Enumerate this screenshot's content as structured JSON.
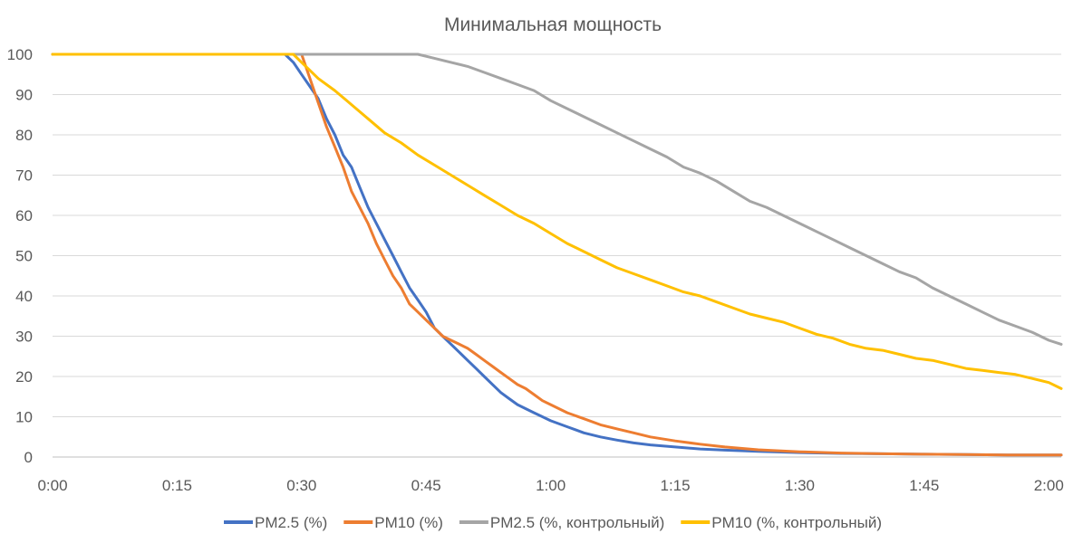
{
  "chart_data": {
    "type": "line",
    "title": "Минимальная мощность",
    "xlabel": "",
    "ylabel": "",
    "x_ticks": [
      "0:00",
      "0:15",
      "0:30",
      "0:45",
      "1:00",
      "1:15",
      "1:30",
      "1:45",
      "2:00"
    ],
    "x_tick_minutes": [
      0,
      15,
      30,
      45,
      60,
      75,
      90,
      105,
      120
    ],
    "xlim": [
      0,
      121.5
    ],
    "ylim": [
      0,
      100
    ],
    "y_ticks": [
      0,
      10,
      20,
      30,
      40,
      50,
      60,
      70,
      80,
      90,
      100
    ],
    "grid": true,
    "legend_position": "bottom",
    "series": [
      {
        "name": "PM2.5 (%)",
        "color": "#4472c4",
        "x": [
          0,
          28,
          29,
          30,
          31,
          32,
          33,
          34,
          35,
          36,
          37,
          38,
          39,
          40,
          41,
          42,
          43,
          44,
          45,
          46,
          47,
          48,
          49,
          50,
          51,
          52,
          53,
          54,
          55,
          56,
          57,
          58,
          59,
          60,
          62,
          64,
          66,
          68,
          70,
          72,
          75,
          78,
          81,
          85,
          90,
          95,
          100,
          105,
          110,
          115,
          121.5
        ],
        "y": [
          100,
          100,
          98,
          95,
          92,
          89,
          84,
          80,
          75,
          72,
          67,
          62,
          58,
          54,
          50,
          46,
          42,
          39,
          36,
          32,
          30,
          28,
          26,
          24,
          22,
          20,
          18,
          16,
          14.5,
          13,
          12,
          11,
          10,
          9,
          7.5,
          6,
          5,
          4.2,
          3.5,
          3,
          2.5,
          2,
          1.7,
          1.4,
          1.1,
          0.9,
          0.8,
          0.7,
          0.6,
          0.5,
          0.5
        ]
      },
      {
        "name": "PM10 (%)",
        "color": "#ed7d31",
        "x": [
          0,
          30,
          31,
          32,
          33,
          34,
          35,
          36,
          37,
          38,
          39,
          40,
          41,
          42,
          43,
          44,
          45,
          46,
          47,
          48,
          49,
          50,
          51,
          52,
          53,
          54,
          55,
          56,
          57,
          58,
          59,
          60,
          62,
          64,
          66,
          68,
          70,
          72,
          75,
          78,
          81,
          85,
          90,
          95,
          100,
          105,
          110,
          115,
          121.5
        ],
        "y": [
          100,
          100,
          94,
          88,
          82,
          77,
          72,
          66,
          62,
          58,
          53,
          49,
          45,
          42,
          38,
          36,
          34,
          32,
          30,
          29,
          28,
          27,
          25.5,
          24,
          22.5,
          21,
          19.5,
          18,
          17,
          15.5,
          14,
          13,
          11,
          9.5,
          8,
          7,
          6,
          5,
          4,
          3.2,
          2.5,
          1.8,
          1.3,
          1,
          0.8,
          0.7,
          0.6,
          0.5,
          0.5
        ]
      },
      {
        "name": "PM2.5 (%, контрольный)",
        "color": "#a5a5a5",
        "x": [
          0,
          44,
          46,
          48,
          50,
          52,
          54,
          56,
          58,
          60,
          62,
          64,
          66,
          68,
          70,
          72,
          74,
          76,
          78,
          80,
          82,
          84,
          86,
          88,
          90,
          92,
          94,
          96,
          98,
          100,
          102,
          104,
          106,
          108,
          110,
          112,
          114,
          116,
          118,
          120,
          121.5
        ],
        "y": [
          100,
          100,
          99,
          98,
          97,
          95.5,
          94,
          92.5,
          91,
          88.5,
          86.5,
          84.5,
          82.5,
          80.5,
          78.5,
          76.5,
          74.5,
          72,
          70.5,
          68.5,
          66,
          63.5,
          62,
          60,
          58,
          56,
          54,
          52,
          50,
          48,
          46,
          44.5,
          42,
          40,
          38,
          36,
          34,
          32.5,
          31,
          29,
          28
        ]
      },
      {
        "name": "PM10 (%, контрольный)",
        "color": "#ffc000",
        "x": [
          0,
          29,
          30,
          31,
          32,
          34,
          36,
          38,
          40,
          42,
          44,
          46,
          48,
          50,
          52,
          54,
          56,
          58,
          60,
          62,
          64,
          66,
          68,
          70,
          72,
          74,
          76,
          78,
          80,
          82,
          84,
          86,
          88,
          90,
          92,
          94,
          96,
          98,
          100,
          102,
          104,
          106,
          108,
          110,
          112,
          114,
          116,
          118,
          120,
          121.5
        ],
        "y": [
          100,
          100,
          98,
          96,
          94,
          91,
          87.5,
          84,
          80.5,
          78,
          75,
          72.5,
          70,
          67.5,
          65,
          62.5,
          60,
          58,
          55.5,
          53,
          51,
          49,
          47,
          45.5,
          44,
          42.5,
          41,
          40,
          38.5,
          37,
          35.5,
          34.5,
          33.5,
          32,
          30.5,
          29.5,
          28,
          27,
          26.5,
          25.5,
          24.5,
          24,
          23,
          22,
          21.5,
          21,
          20.5,
          19.5,
          18.5,
          17
        ]
      }
    ]
  }
}
